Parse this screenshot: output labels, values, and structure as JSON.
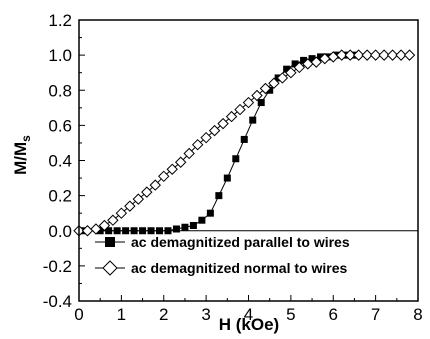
{
  "chart_data": {
    "type": "scatter",
    "xlabel": "H (kOe)",
    "ylabel_main": "M/M",
    "ylabel_sub": "s",
    "xlim": [
      0,
      8
    ],
    "ylim": [
      -0.4,
      1.2
    ],
    "xticks": [
      "0",
      "1",
      "2",
      "3",
      "4",
      "5",
      "6",
      "7",
      "8"
    ],
    "yticks": [
      "-0.4",
      "-0.2",
      "0.0",
      "0.2",
      "0.4",
      "0.6",
      "0.8",
      "1.0",
      "1.2"
    ],
    "grid": false,
    "legend_position": "bottom-right",
    "reference_line_y": 0,
    "series": [
      {
        "name": "ac demagnitized parallel to wires",
        "marker": "filled-square",
        "color": "#000000",
        "points": [
          [
            0.1,
            0.0
          ],
          [
            0.5,
            0.0
          ],
          [
            0.7,
            0.0
          ],
          [
            0.9,
            0.0
          ],
          [
            1.1,
            0.0
          ],
          [
            1.3,
            0.0
          ],
          [
            1.5,
            0.0
          ],
          [
            1.7,
            0.0
          ],
          [
            1.9,
            0.0
          ],
          [
            2.1,
            0.0
          ],
          [
            2.3,
            0.01
          ],
          [
            2.5,
            0.02
          ],
          [
            2.7,
            0.03
          ],
          [
            2.9,
            0.06
          ],
          [
            3.1,
            0.1
          ],
          [
            3.3,
            0.2
          ],
          [
            3.5,
            0.3
          ],
          [
            3.7,
            0.41
          ],
          [
            3.9,
            0.52
          ],
          [
            4.1,
            0.63
          ],
          [
            4.3,
            0.73
          ],
          [
            4.5,
            0.8
          ],
          [
            4.7,
            0.87
          ],
          [
            4.9,
            0.92
          ],
          [
            5.1,
            0.95
          ],
          [
            5.3,
            0.97
          ],
          [
            5.5,
            0.98
          ],
          [
            5.7,
            0.99
          ],
          [
            5.9,
            0.99
          ],
          [
            6.1,
            1.0
          ],
          [
            6.3,
            1.0
          ],
          [
            6.5,
            1.0
          ]
        ]
      },
      {
        "name": "ac demagnitized normal to wires",
        "marker": "open-diamond",
        "color": "#000000",
        "points": [
          [
            0.0,
            0.0
          ],
          [
            0.2,
            0.0
          ],
          [
            0.4,
            0.01
          ],
          [
            0.6,
            0.03
          ],
          [
            0.8,
            0.06
          ],
          [
            1.0,
            0.1
          ],
          [
            1.2,
            0.14
          ],
          [
            1.4,
            0.18
          ],
          [
            1.6,
            0.22
          ],
          [
            1.8,
            0.26
          ],
          [
            2.0,
            0.31
          ],
          [
            2.2,
            0.35
          ],
          [
            2.4,
            0.39
          ],
          [
            2.6,
            0.44
          ],
          [
            2.8,
            0.49
          ],
          [
            3.0,
            0.53
          ],
          [
            3.2,
            0.57
          ],
          [
            3.4,
            0.61
          ],
          [
            3.6,
            0.65
          ],
          [
            3.8,
            0.69
          ],
          [
            4.0,
            0.73
          ],
          [
            4.2,
            0.77
          ],
          [
            4.4,
            0.81
          ],
          [
            4.6,
            0.84
          ],
          [
            4.8,
            0.87
          ],
          [
            5.0,
            0.9
          ],
          [
            5.2,
            0.93
          ],
          [
            5.4,
            0.95
          ],
          [
            5.6,
            0.96
          ],
          [
            5.8,
            0.98
          ],
          [
            6.0,
            0.99
          ],
          [
            6.2,
            1.0
          ],
          [
            6.4,
            1.0
          ],
          [
            6.6,
            1.0
          ],
          [
            6.8,
            1.0
          ],
          [
            7.0,
            1.0
          ],
          [
            7.2,
            1.0
          ],
          [
            7.4,
            1.0
          ],
          [
            7.6,
            1.0
          ],
          [
            7.8,
            1.0
          ]
        ]
      }
    ]
  }
}
